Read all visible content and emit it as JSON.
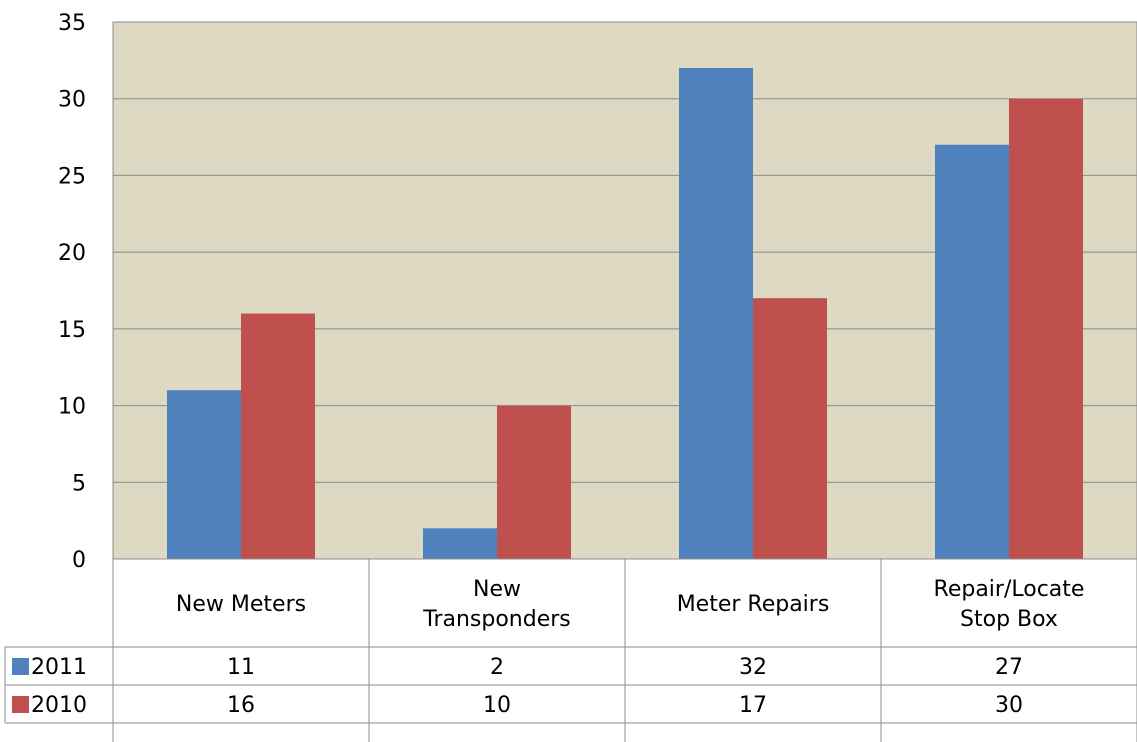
{
  "chart_data": {
    "type": "bar",
    "categories": [
      "New Meters",
      "New Transponders",
      "Meter Repairs",
      "Repair/Locate Stop Box"
    ],
    "category_lines": [
      [
        "New Meters"
      ],
      [
        "New",
        "Transponders"
      ],
      [
        "Meter Repairs"
      ],
      [
        "Repair/Locate",
        "Stop Box"
      ]
    ],
    "series": [
      {
        "name": "2011",
        "values": [
          11,
          2,
          32,
          27
        ],
        "color": "#4F81BD"
      },
      {
        "name": "2010",
        "values": [
          16,
          10,
          17,
          30
        ],
        "color": "#C0504D"
      }
    ],
    "title": "",
    "xlabel": "",
    "ylabel": "",
    "ylim": [
      0,
      35
    ],
    "yticks": [
      0,
      5,
      10,
      15,
      20,
      25,
      30,
      35
    ],
    "grid": true,
    "legend": "data-table",
    "plot_background": "#DDD9C3"
  }
}
